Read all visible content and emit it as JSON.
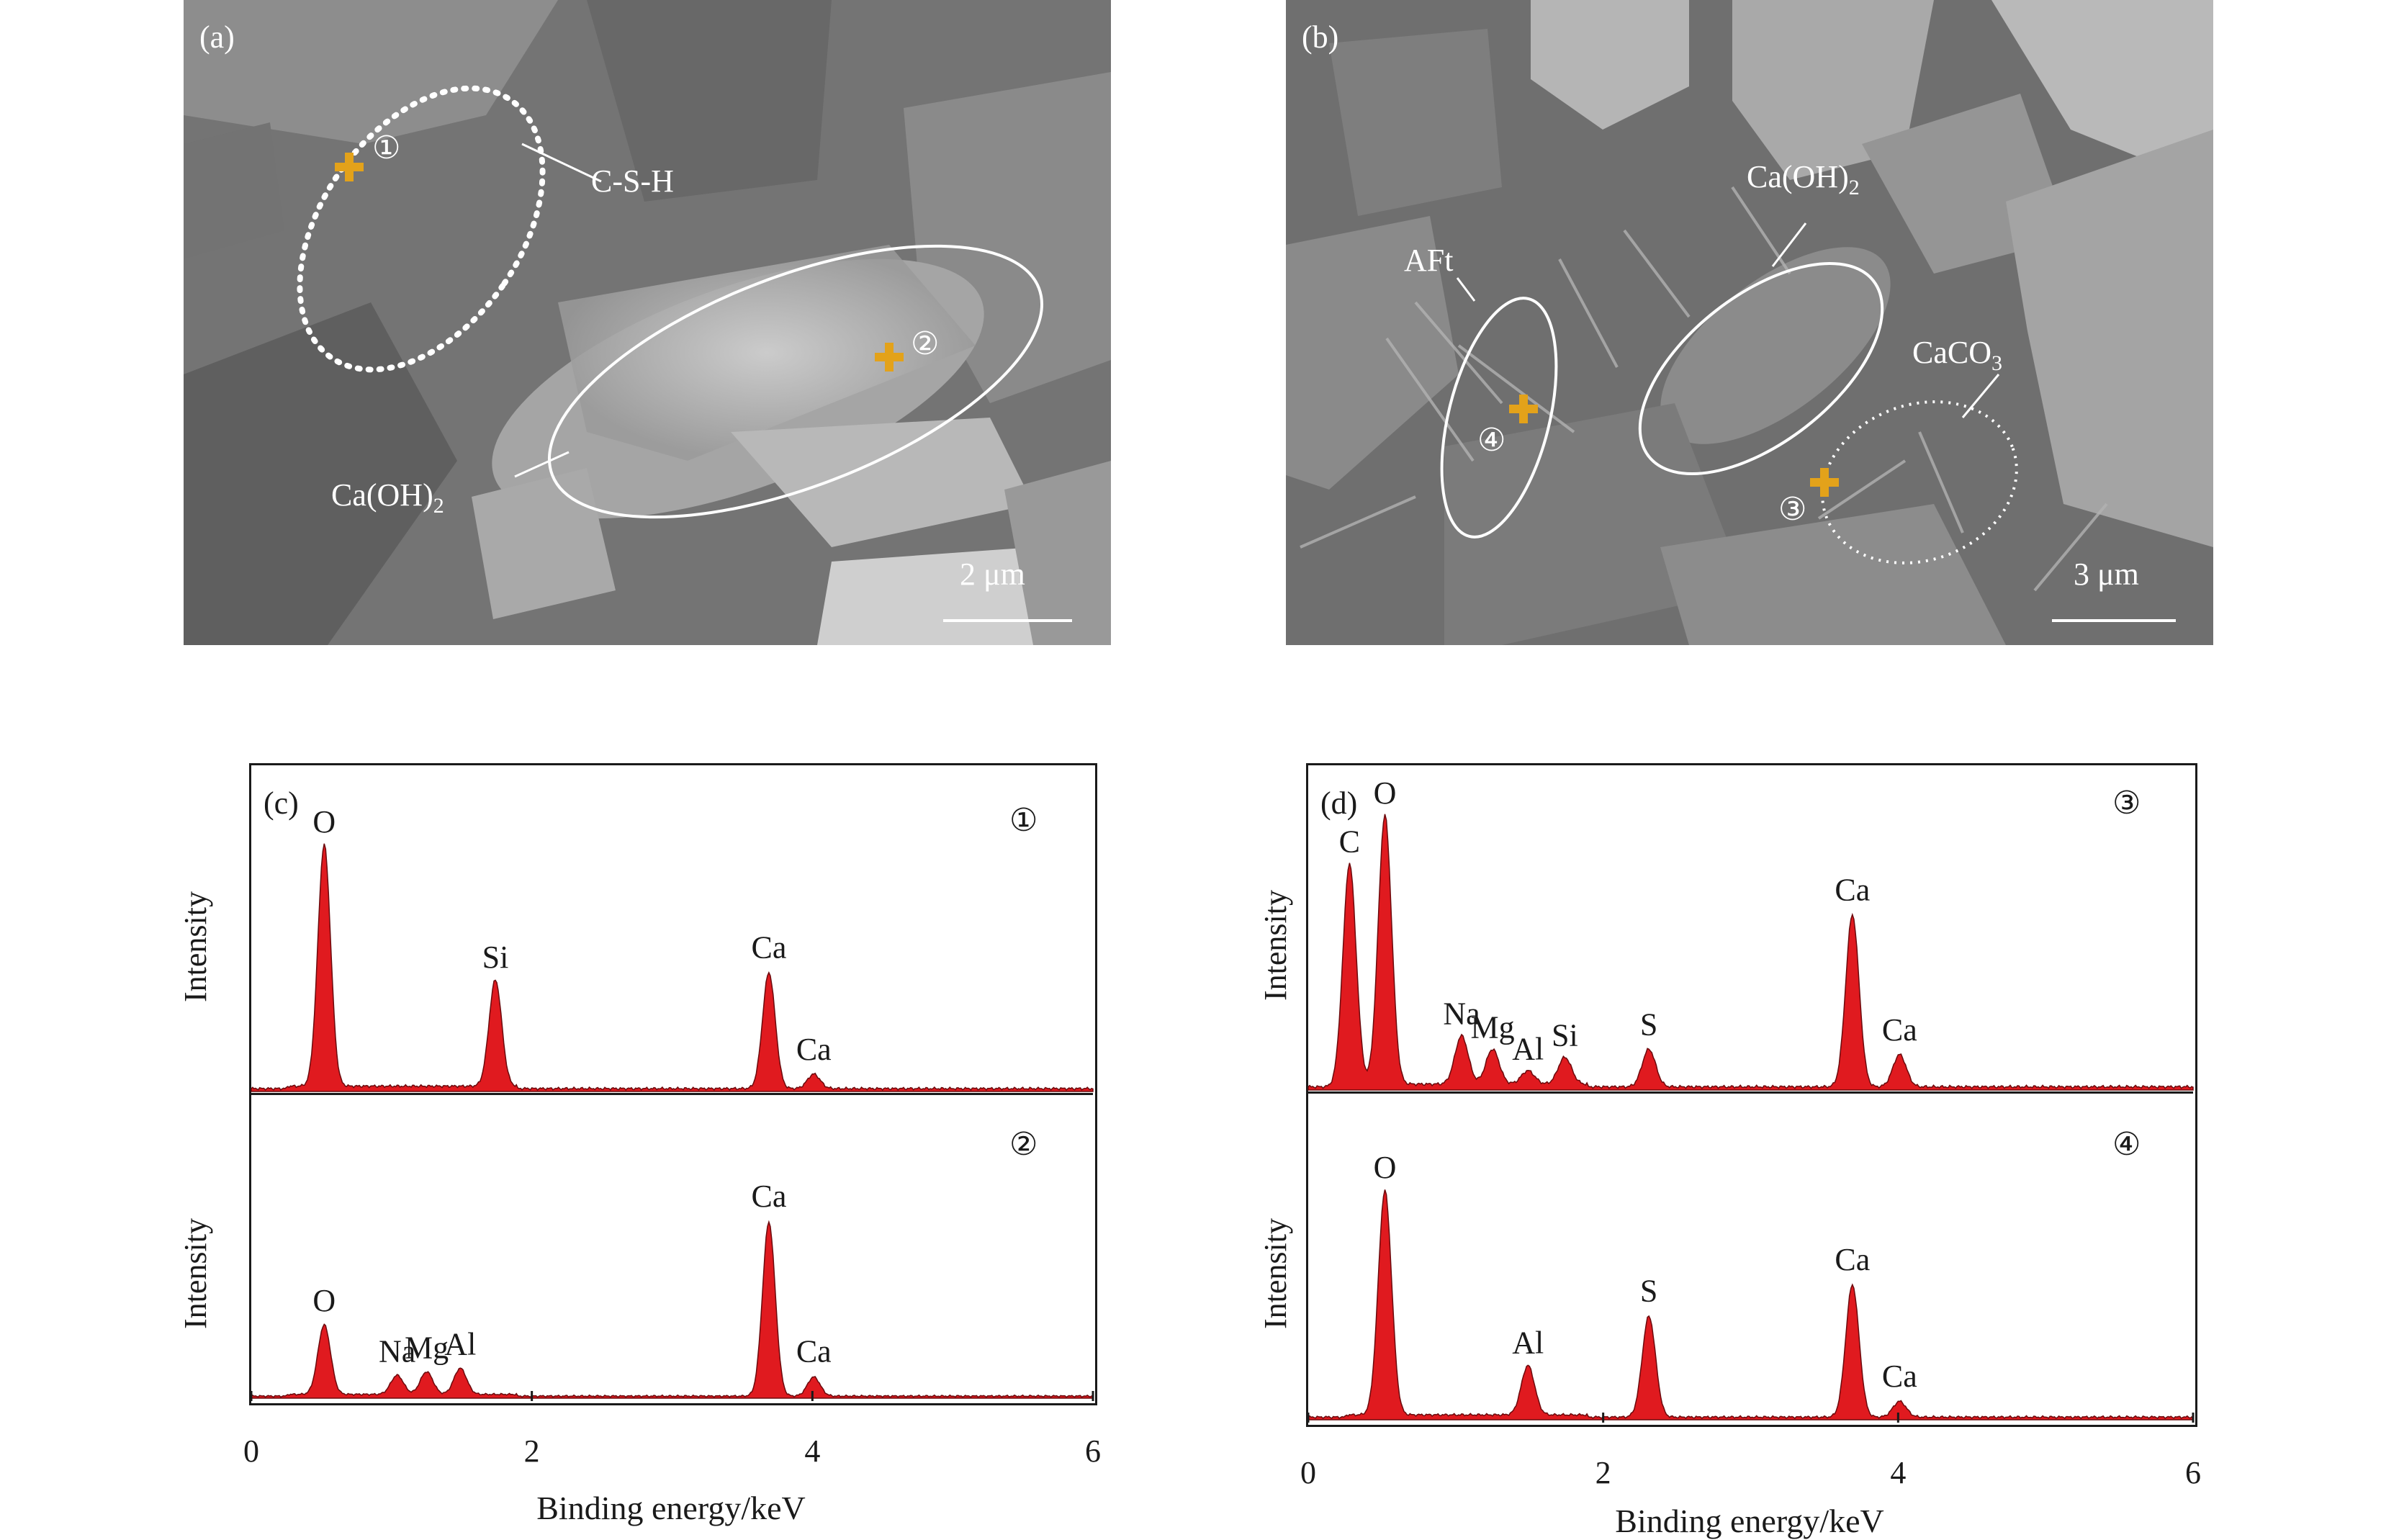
{
  "panel_a": {
    "letter": "(a)",
    "annotations": {
      "point1": "①",
      "point2": "②",
      "label_csh": "C-S-H",
      "label_caoh2_main": "Ca(OH)",
      "label_caoh2_sub": "2",
      "scale_bar": "2 μm"
    }
  },
  "panel_b": {
    "letter": "(b)",
    "annotations": {
      "point3": "③",
      "point4": "④",
      "label_aft": "AFt",
      "label_caoh2_main": "Ca(OH)",
      "label_caoh2_sub": "2",
      "label_caco3_main": "CaCO",
      "label_caco3_sub": "3",
      "scale_bar": "3 μm"
    }
  },
  "colors": {
    "spectrum_fill": "#e01a1f",
    "marker": "#e3a21a",
    "sem_background": "#7e7e7e"
  },
  "chart_data": [
    {
      "type": "area",
      "panel": "(c)",
      "xlabel": "Binding energy/keV",
      "ylabel": "Intensity",
      "xlim": [
        0,
        6
      ],
      "xticks": [
        "0",
        "2",
        "4",
        "6"
      ],
      "series": [
        {
          "name": "①",
          "peaks": [
            {
              "element": "O",
              "x": 0.52,
              "y": 1.0
            },
            {
              "element": "Si",
              "x": 1.74,
              "y": 0.44
            },
            {
              "element": "Ca",
              "x": 3.69,
              "y": 0.48
            },
            {
              "element": "Ca",
              "x": 4.01,
              "y": 0.06
            }
          ]
        },
        {
          "name": "②",
          "peaks": [
            {
              "element": "O",
              "x": 0.52,
              "y": 0.4
            },
            {
              "element": "Na",
              "x": 1.04,
              "y": 0.11
            },
            {
              "element": "Mg",
              "x": 1.25,
              "y": 0.13
            },
            {
              "element": "Al",
              "x": 1.49,
              "y": 0.15
            },
            {
              "element": "Ca",
              "x": 3.69,
              "y": 1.0
            },
            {
              "element": "Ca",
              "x": 4.01,
              "y": 0.11
            }
          ]
        }
      ]
    },
    {
      "type": "area",
      "panel": "(d)",
      "xlabel": "Binding energy/keV",
      "ylabel": "Intensity",
      "xlim": [
        0,
        6
      ],
      "xticks": [
        "0",
        "2",
        "4",
        "6"
      ],
      "series": [
        {
          "name": "③",
          "peaks": [
            {
              "element": "C",
              "x": 0.28,
              "y": 0.82
            },
            {
              "element": "O",
              "x": 0.52,
              "y": 1.0
            },
            {
              "element": "Na",
              "x": 1.04,
              "y": 0.18
            },
            {
              "element": "Mg",
              "x": 1.25,
              "y": 0.13
            },
            {
              "element": "Al",
              "x": 1.49,
              "y": 0.05
            },
            {
              "element": "Si",
              "x": 1.74,
              "y": 0.1
            },
            {
              "element": "S",
              "x": 2.31,
              "y": 0.14
            },
            {
              "element": "Ca",
              "x": 3.69,
              "y": 0.64
            },
            {
              "element": "Ca",
              "x": 4.01,
              "y": 0.12
            }
          ]
        },
        {
          "name": "④",
          "peaks": [
            {
              "element": "O",
              "x": 0.52,
              "y": 1.0
            },
            {
              "element": "Al",
              "x": 1.49,
              "y": 0.22
            },
            {
              "element": "S",
              "x": 2.31,
              "y": 0.45
            },
            {
              "element": "Ca",
              "x": 3.69,
              "y": 0.59
            },
            {
              "element": "Ca",
              "x": 4.01,
              "y": 0.07
            }
          ]
        }
      ]
    }
  ]
}
